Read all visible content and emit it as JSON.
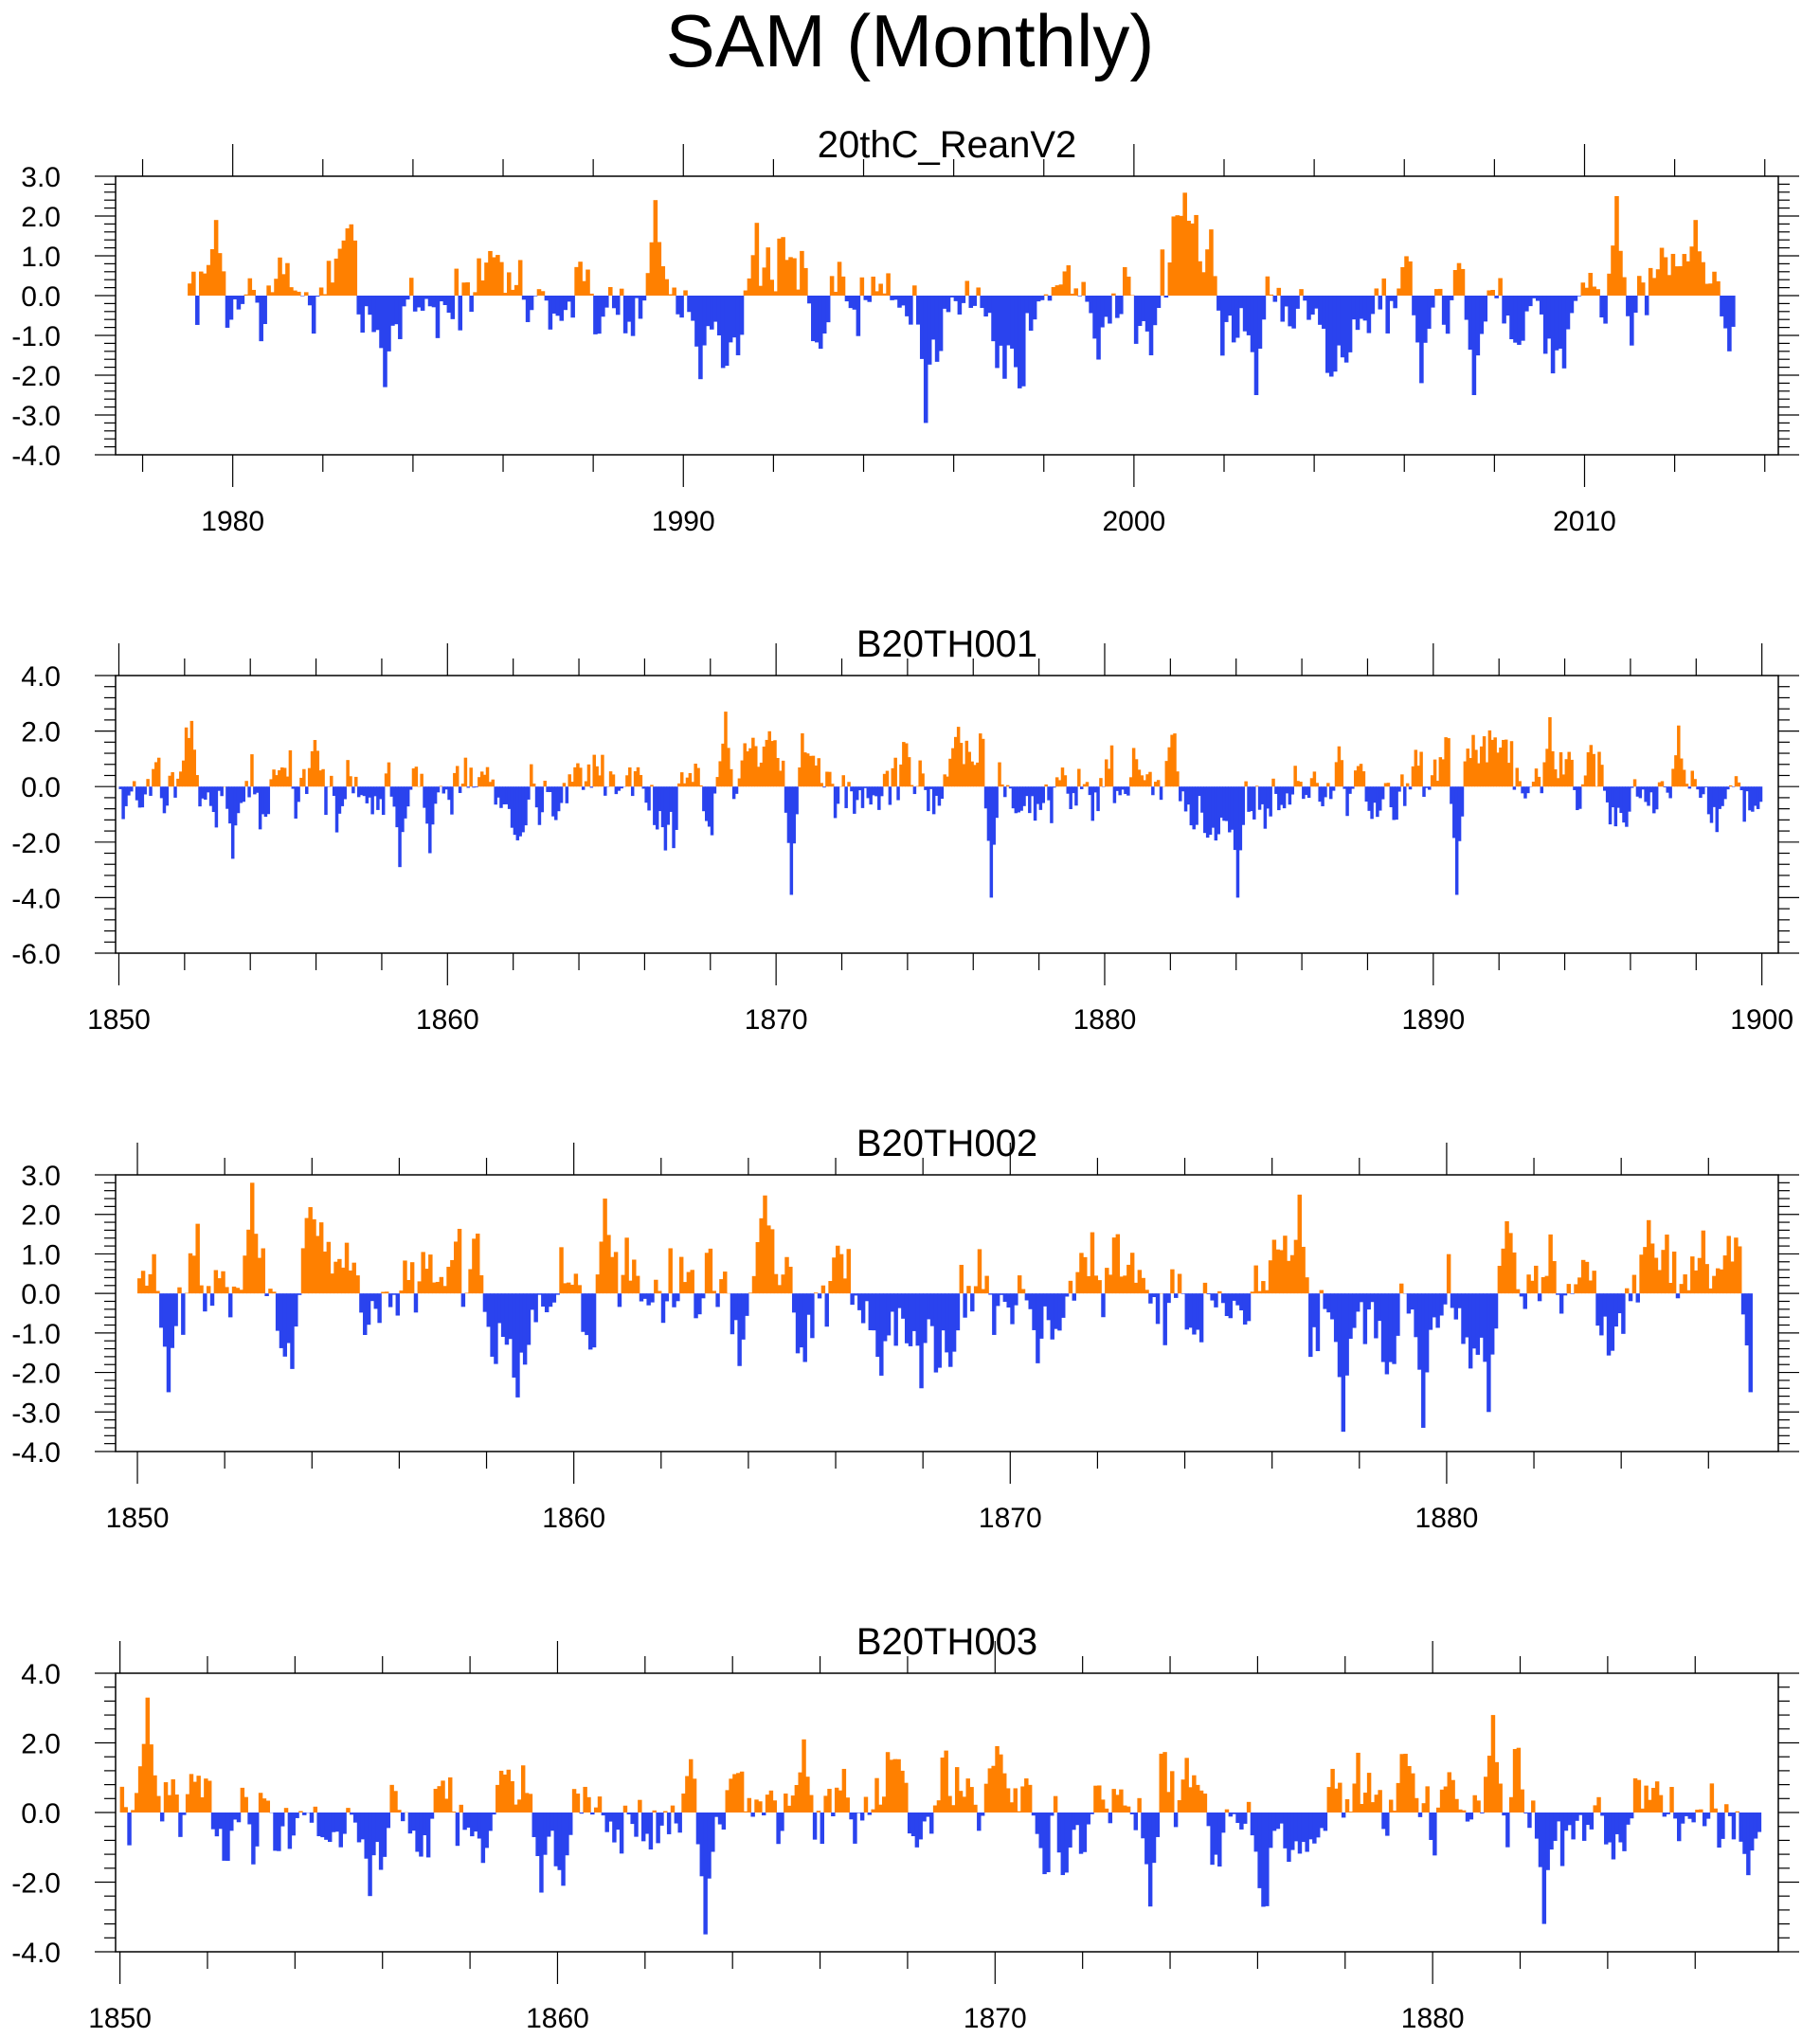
{
  "figure_title": "SAM (Monthly)",
  "colors": {
    "positive": "#ff8000",
    "negative": "#2a43ee",
    "axis": "#000000"
  },
  "chart_data": [
    {
      "type": "area",
      "title": "20thC_ReanV2",
      "x_range": [
        1979,
        2013.3
      ],
      "xlim": [
        1977.4,
        2014.3
      ],
      "x_ticks": [
        1980,
        1990,
        2000,
        2010
      ],
      "ylim": [
        -4.0,
        3.0
      ],
      "y_ticks": [
        3.0,
        2.0,
        1.0,
        0.0,
        -1.0,
        -2.0,
        -3.0,
        -4.0
      ],
      "y_tick_labels": [
        "3.0",
        "2.0",
        "1.0",
        "0.0",
        "-1.0",
        "-2.0",
        "-3.0",
        "-4.0"
      ],
      "y_minor_step": 0.2,
      "seed": 7,
      "peaks": [
        [
          1979.6,
          1.9
        ],
        [
          1983.3,
          -2.3
        ],
        [
          1989.3,
          2.4
        ],
        [
          1990.3,
          -2.1
        ],
        [
          1995.3,
          -3.2
        ],
        [
          2000.3,
          -1.5
        ],
        [
          2002.7,
          -2.5
        ],
        [
          2006.3,
          -2.2
        ],
        [
          2007.5,
          -2.5
        ],
        [
          2010.7,
          2.5
        ],
        [
          2012.4,
          1.9
        ],
        [
          2013.2,
          -1.4
        ]
      ]
    },
    {
      "type": "area",
      "title": "B20TH001",
      "x_range": [
        1850,
        1900
      ],
      "xlim": [
        1849.9,
        1900.5
      ],
      "x_ticks": [
        1850,
        1860,
        1870,
        1880,
        1890,
        1900
      ],
      "ylim": [
        -6.0,
        4.0
      ],
      "y_ticks": [
        4.0,
        2.0,
        0.0,
        -2.0,
        -4.0,
        -6.0
      ],
      "y_tick_labels": [
        "4.0",
        "2.0",
        "0.0",
        "-2.0",
        "-4.0",
        "-6.0"
      ],
      "y_minor_step": 0.4,
      "seed": 13,
      "peaks": [
        [
          1853.4,
          -2.6
        ],
        [
          1858.5,
          -2.9
        ],
        [
          1859.4,
          -2.4
        ],
        [
          1866.6,
          -2.3
        ],
        [
          1868.4,
          2.7
        ],
        [
          1870.4,
          -3.9
        ],
        [
          1876.5,
          -4.0
        ],
        [
          1884.0,
          -4.0
        ],
        [
          1890.7,
          -3.9
        ],
        [
          1893.5,
          2.5
        ],
        [
          1897.4,
          2.2
        ]
      ]
    },
    {
      "type": "area",
      "title": "B20TH002",
      "x_range": [
        1850,
        1887
      ],
      "xlim": [
        1849.5,
        1887.6
      ],
      "x_ticks": [
        1850,
        1860,
        1870,
        1880
      ],
      "ylim": [
        -4.0,
        3.0
      ],
      "y_ticks": [
        3.0,
        2.0,
        1.0,
        0.0,
        -1.0,
        -2.0,
        -3.0,
        -4.0
      ],
      "y_tick_labels": [
        "3.0",
        "2.0",
        "1.0",
        "0.0",
        "-1.0",
        "-2.0",
        "-3.0",
        "-4.0"
      ],
      "y_minor_step": 0.2,
      "seed": 29,
      "peaks": [
        [
          1850.7,
          -2.5
        ],
        [
          1852.6,
          2.8
        ],
        [
          1860.7,
          2.4
        ],
        [
          1867.9,
          -2.4
        ],
        [
          1876.6,
          2.5
        ],
        [
          1877.6,
          -3.5
        ],
        [
          1879.4,
          -3.4
        ],
        [
          1880.9,
          -3.0
        ],
        [
          1886.9,
          -2.5
        ]
      ]
    },
    {
      "type": "area",
      "title": "B20TH003",
      "x_range": [
        1850,
        1887.5
      ],
      "xlim": [
        1849.9,
        1887.9
      ],
      "x_ticks": [
        1850,
        1860,
        1870,
        1880
      ],
      "ylim": [
        -4.0,
        4.0
      ],
      "y_ticks": [
        4.0,
        2.0,
        0.0,
        -2.0,
        -4.0
      ],
      "y_tick_labels": [
        "4.0",
        "2.0",
        "0.0",
        "-2.0",
        "-4.0"
      ],
      "y_minor_step": 0.4,
      "seed": 41,
      "peaks": [
        [
          1850.6,
          3.3
        ],
        [
          1855.7,
          -2.4
        ],
        [
          1859.6,
          -2.3
        ],
        [
          1863.3,
          -3.5
        ],
        [
          1865.6,
          2.1
        ],
        [
          1873.5,
          -2.7
        ],
        [
          1881.3,
          2.8
        ],
        [
          1882.5,
          -3.2
        ],
        [
          1887.2,
          -1.8
        ]
      ]
    }
  ]
}
